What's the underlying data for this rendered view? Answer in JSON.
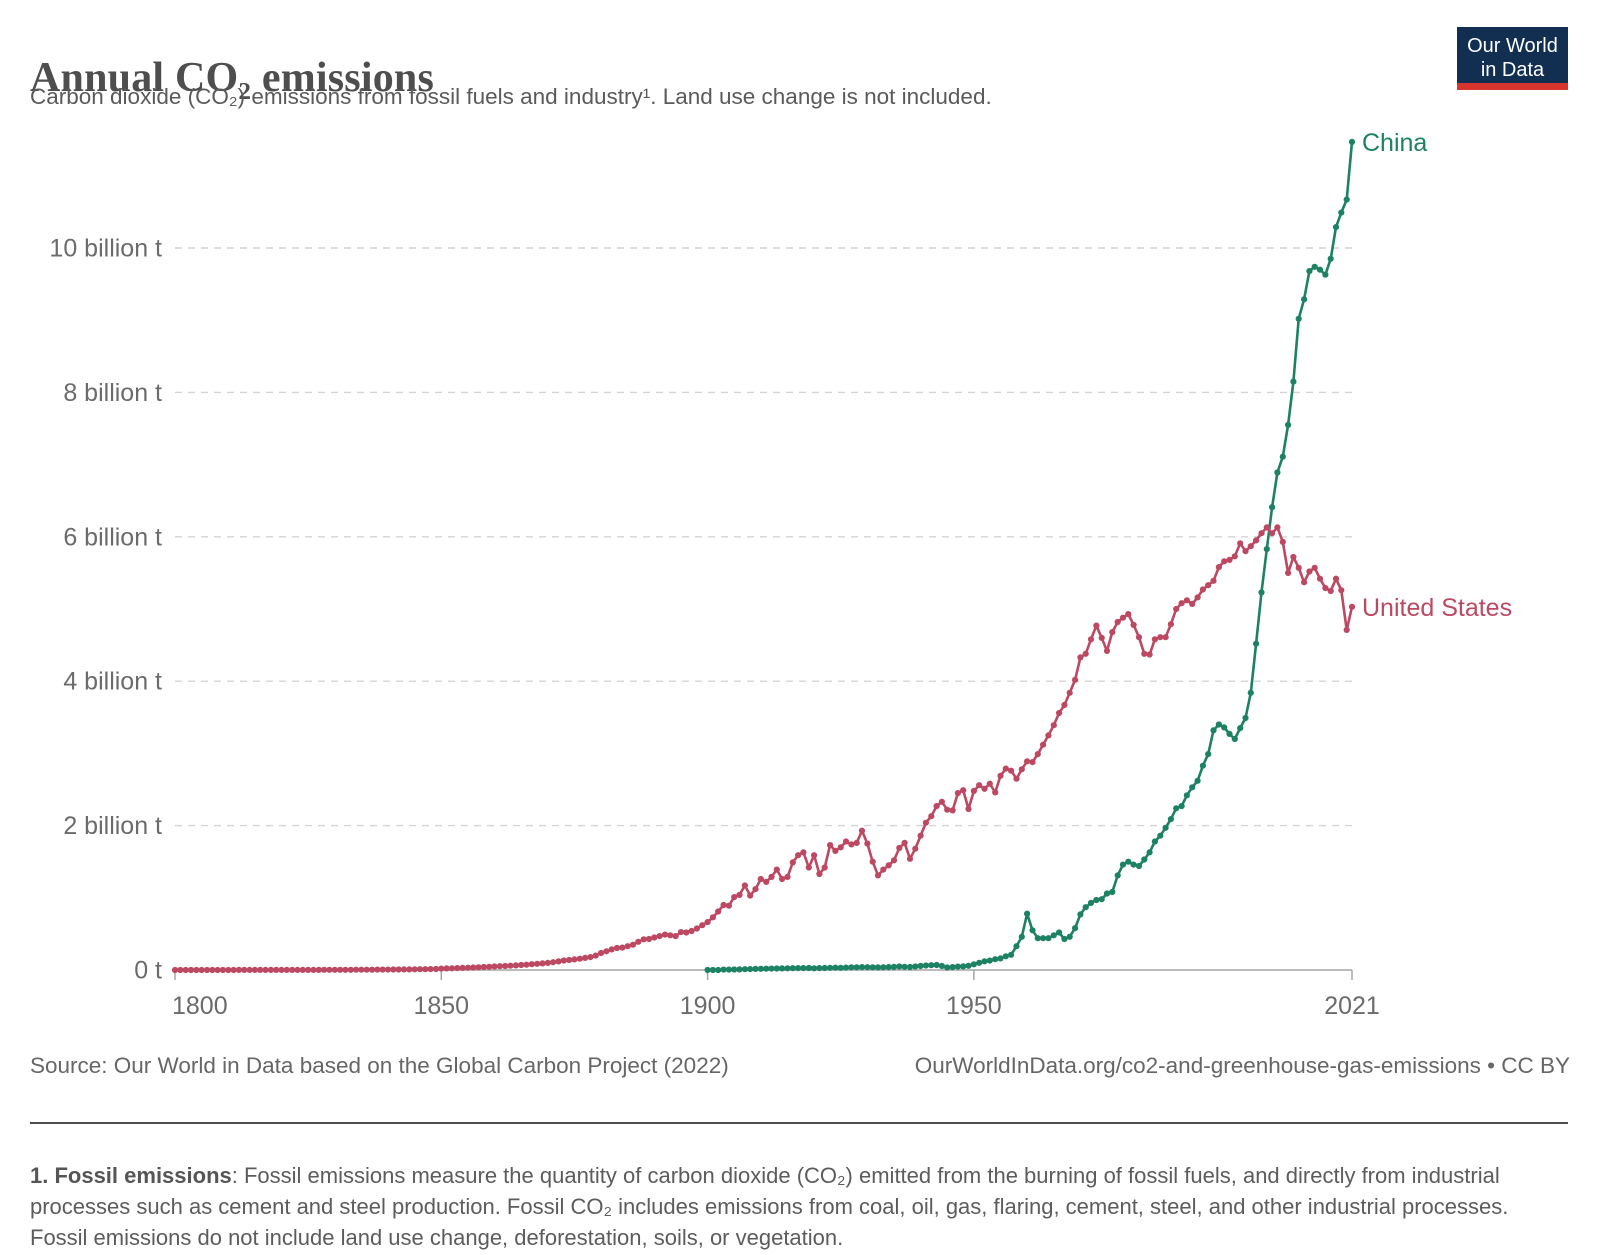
{
  "header": {
    "title": "Annual CO₂ emissions",
    "subtitle": "Carbon dioxide (CO₂) emissions from fossil fuels and industry¹. Land use change is not included."
  },
  "logo": {
    "line1": "Our World",
    "line2": "in Data",
    "bg_color": "#122f52",
    "stripe_color": "#d8352e"
  },
  "chart_data": {
    "type": "line",
    "title": "Annual CO₂ emissions",
    "unit": "tonnes of CO₂ per year",
    "grid": "dashed-horizontal",
    "legend_position": "end-of-line labels",
    "x_axis": {
      "min": 1800,
      "max": 2021,
      "ticks": [
        1800,
        1850,
        1900,
        1950,
        2021
      ]
    },
    "y_axis": {
      "min": 0,
      "max": 11.6,
      "ticks": [
        {
          "value": 0,
          "label": "0 t"
        },
        {
          "value": 2,
          "label": "2 billion t"
        },
        {
          "value": 4,
          "label": "4 billion t"
        },
        {
          "value": 6,
          "label": "6 billion t"
        },
        {
          "value": 8,
          "label": "8 billion t"
        },
        {
          "value": 10,
          "label": "10 billion t"
        }
      ]
    },
    "series": [
      {
        "name": "China",
        "color": "#1d8164",
        "start_year": 1900,
        "unit": "billion t",
        "values": [
          0.0001,
          0.0002,
          0.0004,
          0.005,
          0.006,
          0.007,
          0.009,
          0.011,
          0.013,
          0.015,
          0.017,
          0.018,
          0.019,
          0.021,
          0.022,
          0.023,
          0.025,
          0.026,
          0.027,
          0.028,
          0.024,
          0.026,
          0.028,
          0.03,
          0.032,
          0.031,
          0.033,
          0.037,
          0.038,
          0.04,
          0.039,
          0.038,
          0.036,
          0.037,
          0.04,
          0.043,
          0.048,
          0.045,
          0.042,
          0.048,
          0.056,
          0.063,
          0.066,
          0.069,
          0.055,
          0.035,
          0.04,
          0.047,
          0.05,
          0.058,
          0.079,
          0.1,
          0.12,
          0.13,
          0.15,
          0.16,
          0.19,
          0.21,
          0.33,
          0.46,
          0.78,
          0.55,
          0.44,
          0.44,
          0.44,
          0.48,
          0.52,
          0.43,
          0.46,
          0.58,
          0.77,
          0.87,
          0.93,
          0.97,
          0.98,
          1.06,
          1.08,
          1.31,
          1.46,
          1.5,
          1.46,
          1.44,
          1.53,
          1.63,
          1.78,
          1.86,
          1.97,
          2.09,
          2.24,
          2.27,
          2.42,
          2.53,
          2.62,
          2.83,
          2.99,
          3.32,
          3.4,
          3.36,
          3.27,
          3.2,
          3.35,
          3.49,
          3.84,
          4.52,
          5.23,
          5.83,
          6.41,
          6.89,
          7.11,
          7.55,
          8.15,
          9.02,
          9.29,
          9.68,
          9.74,
          9.7,
          9.63,
          9.85,
          10.29,
          10.49,
          10.67,
          11.47
        ]
      },
      {
        "name": "United States",
        "color": "#bd4862",
        "start_year": 1800,
        "unit": "billion t",
        "values": [
          0.0003,
          0.0003,
          0.0003,
          0.0003,
          0.0004,
          0.0004,
          0.0004,
          0.0005,
          0.0005,
          0.0005,
          0.0006,
          0.0006,
          0.0007,
          0.0007,
          0.0008,
          0.0008,
          0.0009,
          0.0009,
          0.001,
          0.001,
          0.0011,
          0.0012,
          0.0013,
          0.0014,
          0.0016,
          0.0017,
          0.0019,
          0.002,
          0.0022,
          0.0024,
          0.0026,
          0.0029,
          0.0031,
          0.0034,
          0.0037,
          0.004,
          0.0044,
          0.0048,
          0.0052,
          0.0057,
          0.0062,
          0.0068,
          0.0074,
          0.0081,
          0.0088,
          0.0096,
          0.0105,
          0.0114,
          0.0125,
          0.0136,
          0.0199,
          0.022,
          0.024,
          0.026,
          0.029,
          0.032,
          0.035,
          0.038,
          0.041,
          0.045,
          0.049,
          0.052,
          0.055,
          0.059,
          0.064,
          0.069,
          0.074,
          0.08,
          0.086,
          0.092,
          0.098,
          0.108,
          0.119,
          0.131,
          0.138,
          0.147,
          0.156,
          0.167,
          0.178,
          0.199,
          0.236,
          0.259,
          0.285,
          0.305,
          0.31,
          0.33,
          0.35,
          0.39,
          0.425,
          0.43,
          0.45,
          0.47,
          0.49,
          0.48,
          0.47,
          0.525,
          0.52,
          0.54,
          0.575,
          0.62,
          0.663,
          0.73,
          0.81,
          0.9,
          0.89,
          1.01,
          1.04,
          1.17,
          1.03,
          1.12,
          1.26,
          1.22,
          1.29,
          1.39,
          1.26,
          1.29,
          1.49,
          1.59,
          1.63,
          1.42,
          1.59,
          1.33,
          1.42,
          1.73,
          1.65,
          1.7,
          1.78,
          1.74,
          1.76,
          1.93,
          1.75,
          1.5,
          1.31,
          1.39,
          1.45,
          1.52,
          1.69,
          1.76,
          1.54,
          1.68,
          1.86,
          2.04,
          2.13,
          2.27,
          2.33,
          2.22,
          2.21,
          2.45,
          2.49,
          2.23,
          2.48,
          2.56,
          2.51,
          2.58,
          2.46,
          2.69,
          2.79,
          2.76,
          2.65,
          2.78,
          2.89,
          2.88,
          2.99,
          3.12,
          3.25,
          3.39,
          3.56,
          3.67,
          3.84,
          4.02,
          4.33,
          4.38,
          4.58,
          4.77,
          4.6,
          4.42,
          4.68,
          4.82,
          4.88,
          4.93,
          4.78,
          4.61,
          4.38,
          4.37,
          4.58,
          4.61,
          4.61,
          4.79,
          5.0,
          5.08,
          5.12,
          5.07,
          5.16,
          5.27,
          5.33,
          5.39,
          5.58,
          5.66,
          5.68,
          5.73,
          5.91,
          5.8,
          5.87,
          5.95,
          6.05,
          6.13,
          6.05,
          6.13,
          5.93,
          5.5,
          5.72,
          5.57,
          5.37,
          5.52,
          5.57,
          5.42,
          5.29,
          5.25,
          5.42,
          5.26,
          4.71,
          5.03
        ]
      }
    ]
  },
  "footer": {
    "source": "Source: Our World in Data based on the Global Carbon Project (2022)",
    "link": "OurWorldInData.org/co2-and-greenhouse-gas-emissions • CC BY"
  },
  "footnote": {
    "bold": "1. Fossil emissions",
    "rest": ": Fossil emissions measure the quantity of carbon dioxide (CO₂) emitted from the burning of fossil fuels, and directly from industrial processes such as cement and steel production. Fossil CO₂ includes emissions from coal, oil, gas, flaring, cement, steel, and other industrial processes. Fossil emissions do not include land use change, deforestation, soils, or vegetation."
  }
}
